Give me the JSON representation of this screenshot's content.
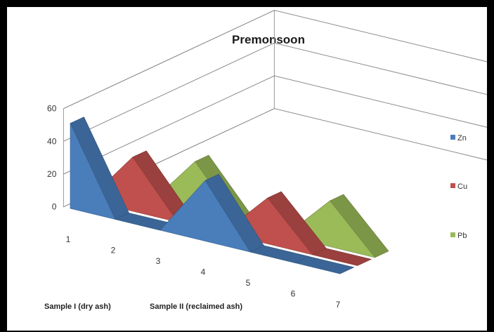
{
  "chart_data": {
    "type": "area",
    "title": "Premonsoon",
    "categories": [
      "1",
      "2",
      "3",
      "4",
      "5",
      "6",
      "7"
    ],
    "series": [
      {
        "name": "Zn",
        "color": "#4a7ebb",
        "values": [
          52,
          0,
          0,
          37,
          0,
          0,
          0
        ]
      },
      {
        "name": "Cu",
        "color": "#c0504d",
        "values": [
          0,
          33,
          0,
          0,
          28,
          0,
          0
        ]
      },
      {
        "name": "Pb",
        "color": "#9bbb59",
        "values": [
          0,
          0,
          32,
          0,
          0,
          28,
          0
        ]
      }
    ],
    "yticks": [
      0,
      20,
      40,
      60
    ],
    "ylim": [
      0,
      60
    ],
    "legend_position": "right",
    "annotations": [
      "Sample I (dry ash)",
      "Sample II (reclaimed ash)"
    ],
    "grid": true,
    "projection": "3d"
  }
}
